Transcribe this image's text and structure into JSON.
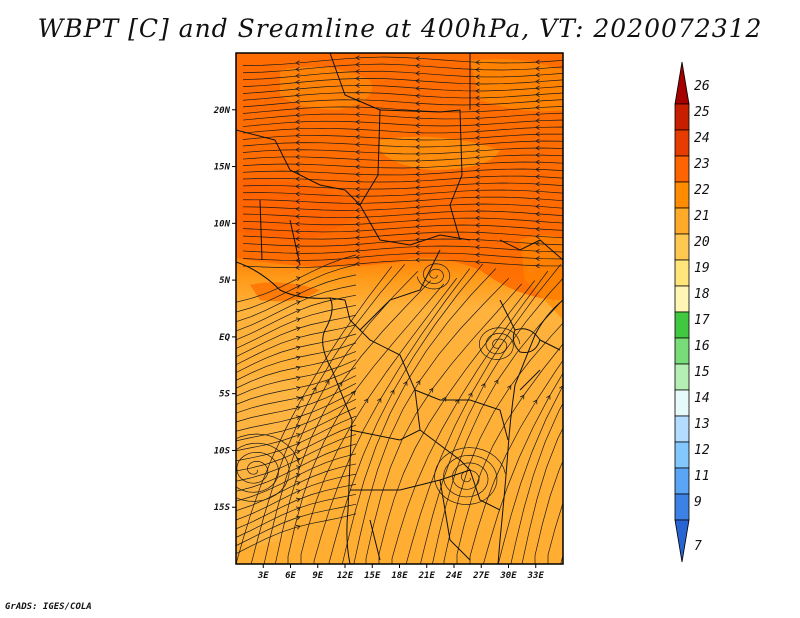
{
  "title": "WBPT [C] and Sreamline at 400hPa, VT: 2020072312",
  "credit": "GrADS: IGES/COLA",
  "map": {
    "lon_range": [
      0,
      36
    ],
    "lat_range": [
      -20,
      25
    ],
    "lon_ticks": [
      "3E",
      "6E",
      "9E",
      "12E",
      "15E",
      "18E",
      "21E",
      "24E",
      "27E",
      "30E",
      "33E"
    ],
    "lon_values": [
      3,
      6,
      9,
      12,
      15,
      18,
      21,
      24,
      27,
      30,
      33
    ],
    "lat_ticks": [
      "20N",
      "15N",
      "10N",
      "5N",
      "EQ",
      "5S",
      "10S",
      "15S"
    ],
    "lat_values": [
      20,
      15,
      10,
      5,
      0,
      -5,
      -10,
      -15
    ]
  },
  "colorbar": {
    "labels": [
      "26",
      "25",
      "24",
      "23",
      "22",
      "21",
      "20",
      "19",
      "18",
      "17",
      "16",
      "15",
      "14",
      "13",
      "12",
      "11",
      "9",
      "7"
    ],
    "colors": [
      "#a50000",
      "#c81e00",
      "#e63c00",
      "#ff6400",
      "#ff8c00",
      "#ffaa28",
      "#ffc850",
      "#ffe57a",
      "#fff5b4",
      "#41c841",
      "#78dc78",
      "#b4f0b4",
      "#e6fafa",
      "#b4dcff",
      "#82c8ff",
      "#5aa5f5",
      "#3c82e6",
      "#2864d2"
    ]
  }
}
